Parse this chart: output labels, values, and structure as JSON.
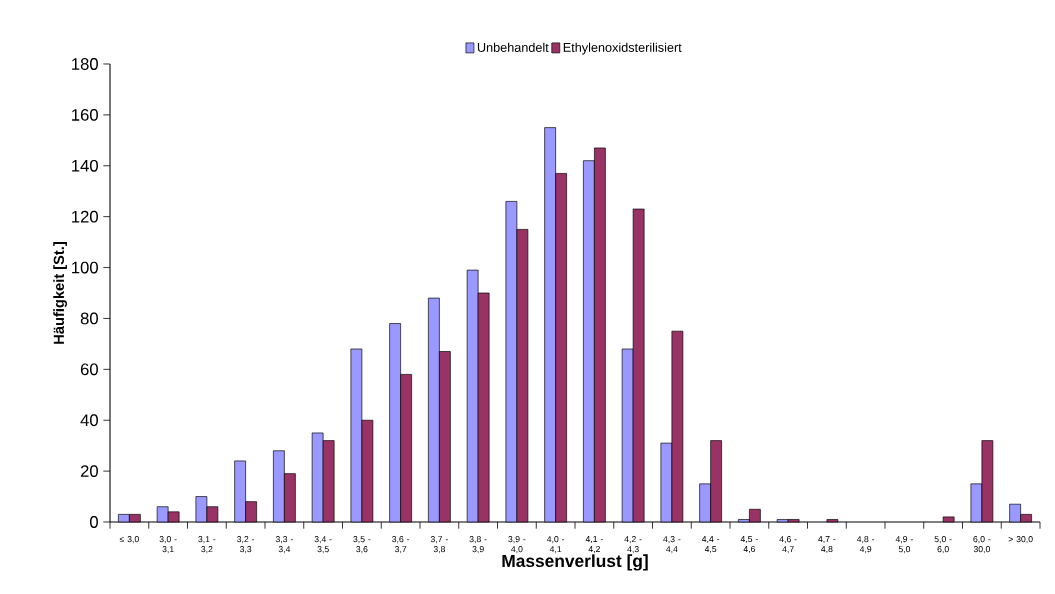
{
  "chart_data": {
    "type": "bar",
    "xlabel": "Massenverlust [g]",
    "ylabel": "Häufigkeit [St.]",
    "categories": [
      "≤ 3,0",
      "3,0 - 3,1",
      "3,1 - 3,2",
      "3,2 - 3,3",
      "3,3 - 3,4",
      "3,4 - 3,5",
      "3,5 - 3,6",
      "3,6 - 3,7",
      "3,7 - 3,8",
      "3,8 - 3,9",
      "3,9 - 4,0",
      "4,0 - 4,1",
      "4,1 - 4,2",
      "4,2 - 4,3",
      "4,3 - 4,4",
      "4,4 - 4,5",
      "4,5 - 4,6",
      "4,6 - 4,7",
      "4,7 - 4,8",
      "4,8 - 4,9",
      "4,9 - 5,0",
      "5,0 - 6,0",
      "6,0 - 30,0",
      "> 30,0"
    ],
    "series": [
      {
        "name": "Unbehandelt",
        "color": "#9999ff",
        "values": [
          3,
          6,
          10,
          24,
          28,
          35,
          68,
          78,
          88,
          99,
          126,
          155,
          142,
          68,
          31,
          15,
          1,
          1,
          0,
          0,
          0,
          0,
          15,
          7
        ]
      },
      {
        "name": "Ethylenoxidsterilisiert",
        "color": "#993366",
        "values": [
          3,
          4,
          6,
          8,
          19,
          32,
          40,
          58,
          67,
          90,
          115,
          137,
          147,
          123,
          75,
          32,
          5,
          1,
          1,
          0,
          0,
          2,
          32,
          3
        ]
      }
    ],
    "ylim": [
      0,
      180
    ],
    "yticks": [
      0,
      20,
      40,
      60,
      80,
      100,
      120,
      140,
      160,
      180
    ],
    "grid": false,
    "legend": "top"
  }
}
